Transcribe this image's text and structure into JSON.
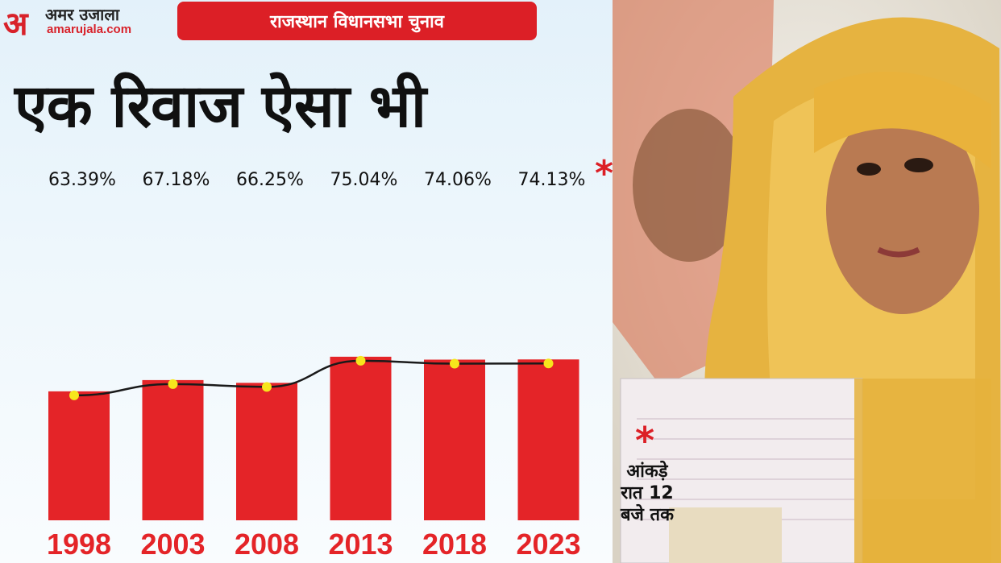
{
  "brand": {
    "mark": "अ",
    "name": "अमर उजाला",
    "domain": "amarujala.com"
  },
  "banner": "राजस्थान विधानसभा चुनाव",
  "headline": "एक रिवाज ऐसा भी",
  "asterisk": "*",
  "note": {
    "line1": "आंकड़े",
    "line2": "रात 12",
    "line3": "बजे तक"
  },
  "colors": {
    "bar": "#e42428",
    "marker": "#f7e61c",
    "line": "#1a1a1a",
    "accent": "#dc1f26"
  },
  "chart_data": {
    "type": "bar",
    "categories": [
      "1998",
      "2003",
      "2008",
      "2013",
      "2018",
      "2023"
    ],
    "values": [
      63.39,
      67.18,
      66.25,
      75.04,
      74.06,
      74.13
    ],
    "value_labels": [
      "63.39%",
      "67.18%",
      "66.25%",
      "75.04%",
      "74.06%",
      "74.13%"
    ],
    "title": "एक रिवाज ऐसा भी",
    "xlabel": "",
    "ylabel": "",
    "overlay": "line",
    "grid": false,
    "legend": "none"
  }
}
